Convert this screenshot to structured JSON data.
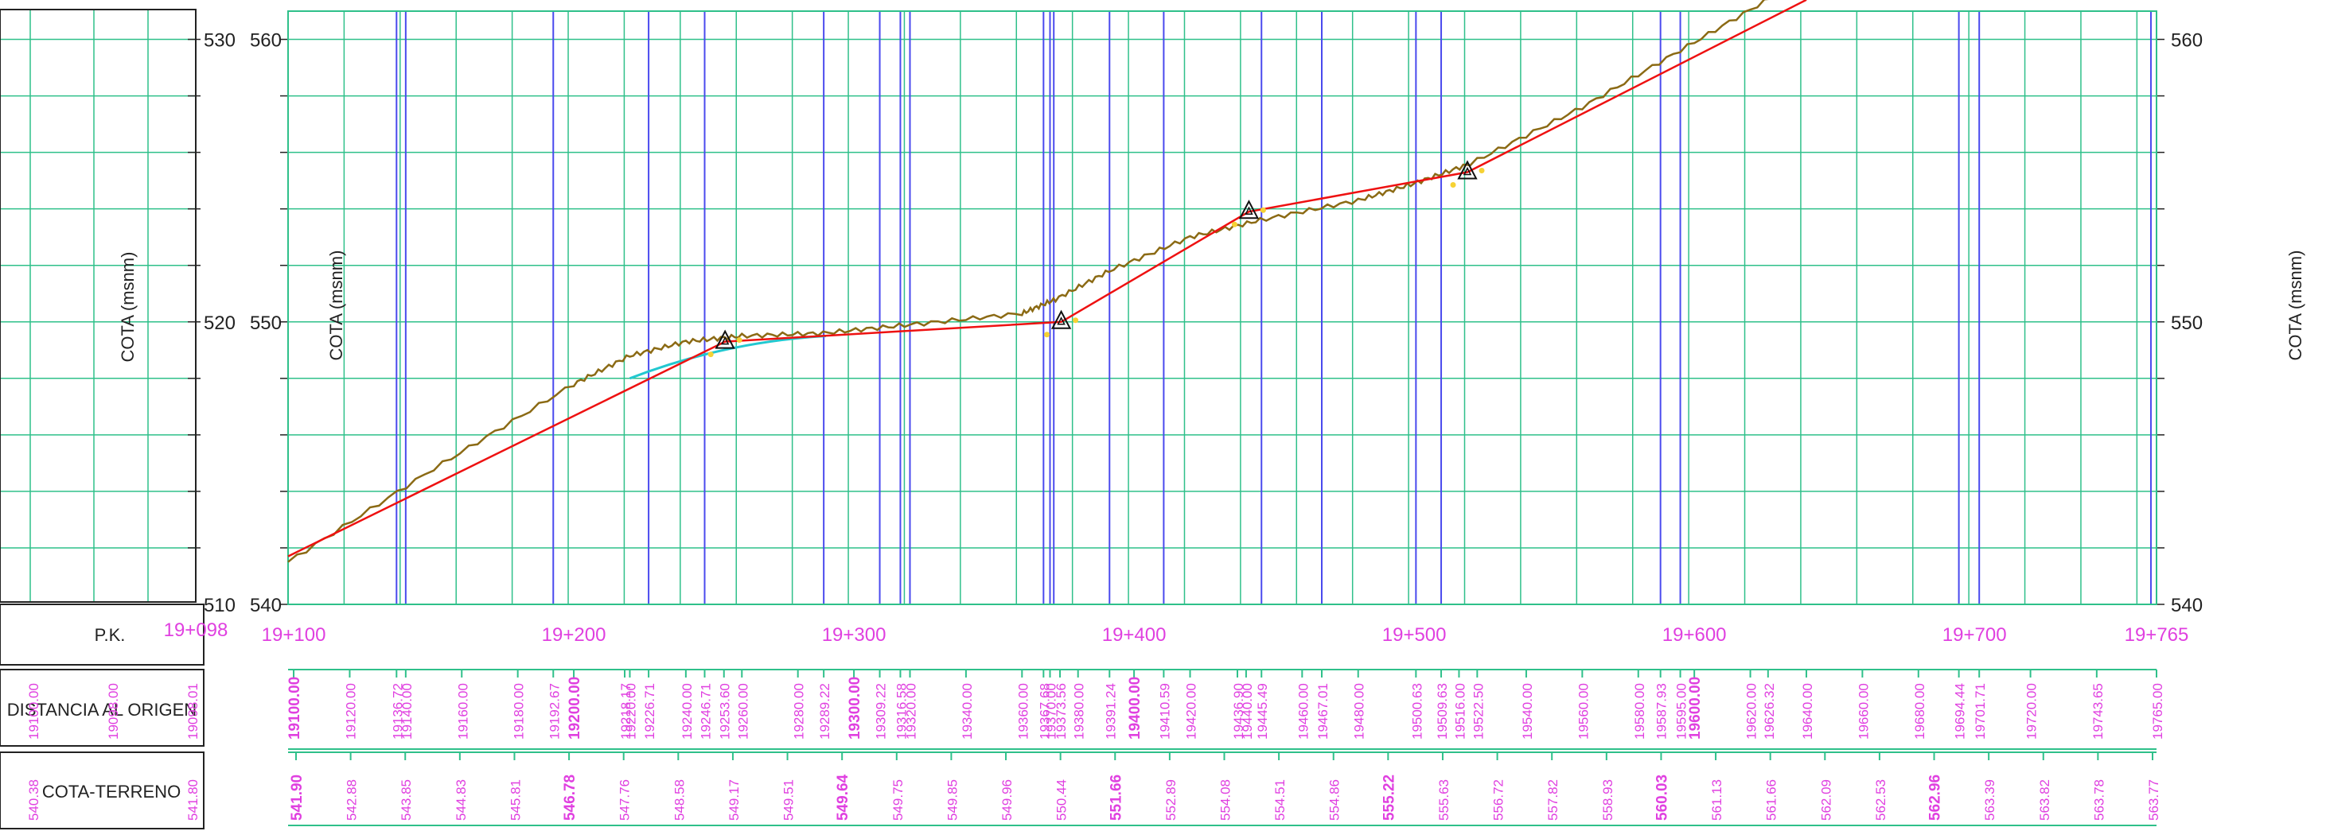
{
  "colors": {
    "grid": "#2fc08a",
    "station_line": "#4a4aee",
    "labels": "#e040e0",
    "rasante": "#ee1111",
    "terreno": "#8b6a14",
    "curve": "#22c8d0",
    "frame": "#222222"
  },
  "icons": {
    "vertex": "triangle-marker-icon"
  },
  "left_panel": {
    "y_axis_title": "COTA (msnm)",
    "ticks": [
      {
        "label": "530",
        "value": 560
      },
      {
        "label": "520",
        "value": 550
      },
      {
        "label": "510",
        "value": 540
      }
    ],
    "row_labels": {
      "pk": "P.K.",
      "distancia": "DISTANCIA AL ORIGEN",
      "cota_terreno": "COTA-TERRENO"
    },
    "pk_start": "19+098",
    "dist_values": [
      "19100.00",
      "19098.00",
      "19098.01"
    ],
    "cota_values": [
      "540.38",
      "541.80"
    ]
  },
  "chart_data": {
    "type": "line",
    "y_axis_title": "COTA (msnm)",
    "xlim": [
      19098,
      19765
    ],
    "ylim": [
      540,
      561
    ],
    "y_ticks": [
      540,
      550,
      560
    ],
    "grid": true,
    "pk_labels": [
      {
        "value": 19100,
        "label": "19+100"
      },
      {
        "value": 19200,
        "label": "19+200"
      },
      {
        "value": 19300,
        "label": "19+300"
      },
      {
        "value": 19400,
        "label": "19+400"
      },
      {
        "value": 19500,
        "label": "19+500"
      },
      {
        "value": 19600,
        "label": "19+600"
      },
      {
        "value": 19700,
        "label": "19+700"
      },
      {
        "value": 19765,
        "label": "19+765"
      }
    ],
    "station_lines": [
      19136.72,
      19140.0,
      19192.67,
      19226.71,
      19246.71,
      19289.22,
      19309.22,
      19316.58,
      19320.0,
      19367.68,
      19370.0,
      19371.34,
      19391.24,
      19410.59,
      19445.49,
      19467.01,
      19500.63,
      19509.63,
      19587.93,
      19595.0,
      19701.71,
      19694.44,
      19763.0,
      19765.0
    ],
    "rasante": {
      "x": [
        19098,
        19254,
        19374,
        19441,
        19519,
        19640
      ],
      "y": [
        541.7,
        549.3,
        550.0,
        553.9,
        555.3,
        561.4
      ]
    },
    "vertices": [
      {
        "x": 19254,
        "y": 549.3
      },
      {
        "x": 19374,
        "y": 550.0
      },
      {
        "x": 19441,
        "y": 553.9
      },
      {
        "x": 19519,
        "y": 555.3
      }
    ],
    "terreno": {
      "x": [
        19098,
        19150,
        19200,
        19220,
        19240,
        19260,
        19289,
        19320,
        19360,
        19372,
        19391,
        19420,
        19445,
        19480,
        19500,
        19520,
        19560,
        19600,
        19640
      ],
      "y": [
        541.5,
        544.8,
        547.8,
        548.8,
        549.3,
        549.5,
        549.6,
        549.9,
        550.3,
        550.8,
        551.8,
        553.0,
        553.6,
        554.3,
        554.9,
        555.6,
        557.6,
        559.9,
        562.2
      ]
    },
    "distancia_labels": [
      "19100.00",
      "19120.00",
      "19136.72",
      "19140.00",
      "19160.00",
      "19180.00",
      "19192.67",
      "19200.00",
      "19218.17",
      "19220.00",
      "19226.71",
      "19240.00",
      "19246.71",
      "19253.60",
      "19260.00",
      "19280.00",
      "19289.22",
      "19300.00",
      "19309.22",
      "19316.58",
      "19320.00",
      "19340.00",
      "19360.00",
      "19367.68",
      "19370.00",
      "19373.56",
      "19380.00",
      "19391.24",
      "19400.00",
      "19410.59",
      "19420.00",
      "19436.90",
      "19440.00",
      "19445.49",
      "19460.00",
      "19467.01",
      "19480.00",
      "19500.63",
      "19509.63",
      "19516.00",
      "19522.50",
      "19540.00",
      "19560.00",
      "19580.00",
      "19587.93",
      "19595.00",
      "19600.00",
      "19620.00",
      "19626.32",
      "19640.00",
      "19660.00",
      "19680.00",
      "19694.44",
      "19701.71",
      "19720.00",
      "19743.65",
      "19765.00"
    ],
    "cota_labels": [
      "541.90",
      "542.88",
      "543.85",
      "544.83",
      "545.81",
      "546.78",
      "547.76",
      "548.58",
      "549.17",
      "549.51",
      "549.64",
      "549.75",
      "549.85",
      "549.96",
      "550.44",
      "551.66",
      "552.89",
      "554.08",
      "554.51",
      "554.86",
      "555.22",
      "555.63",
      "556.72",
      "557.82",
      "558.93",
      "560.03",
      "561.13",
      "561.66",
      "562.09",
      "562.53",
      "562.96",
      "563.39",
      "563.82",
      "563.78",
      "563.77"
    ]
  }
}
